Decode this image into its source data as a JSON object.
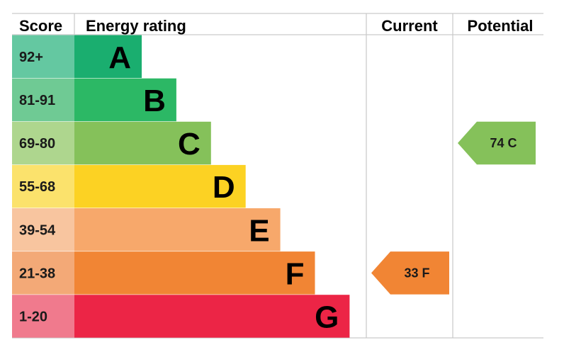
{
  "header": {
    "score": "Score",
    "energy_rating": "Energy rating",
    "current": "Current",
    "potential": "Potential"
  },
  "chart_data": {
    "type": "bar",
    "bands": [
      {
        "letter": "A",
        "range": "92+",
        "max_score": 100,
        "bar_color": "#1aae6f",
        "score_color": "#64c8a1"
      },
      {
        "letter": "B",
        "range": "81-91",
        "max_score": 91,
        "bar_color": "#2cb865",
        "score_color": "#6fca94"
      },
      {
        "letter": "C",
        "range": "69-80",
        "max_score": 80,
        "bar_color": "#85c15a",
        "score_color": "#aed68e"
      },
      {
        "letter": "D",
        "range": "55-68",
        "max_score": 68,
        "bar_color": "#fcd223",
        "score_color": "#fbe26c"
      },
      {
        "letter": "E",
        "range": "39-54",
        "max_score": 54,
        "bar_color": "#f7a86b",
        "score_color": "#f8c59f"
      },
      {
        "letter": "F",
        "range": "21-38",
        "max_score": 38,
        "bar_color": "#f18534",
        "score_color": "#f3a977"
      },
      {
        "letter": "G",
        "range": "1-20",
        "max_score": 20,
        "bar_color": "#ec2546",
        "score_color": "#f07a8d"
      }
    ],
    "current": {
      "score": 33,
      "rating": "F",
      "label": "33  F",
      "color": "#f18534"
    },
    "potential": {
      "score": 74,
      "rating": "C",
      "label": "74  C",
      "color": "#85c15a"
    }
  }
}
